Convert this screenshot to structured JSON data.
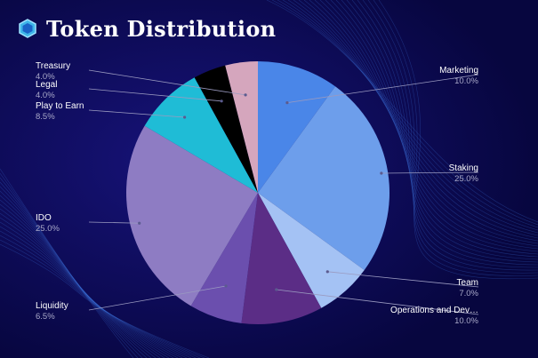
{
  "title": "Token Distribution",
  "colors": {
    "background": "#0b0a5a",
    "title": "#ffffff",
    "label": "#ffffff",
    "value_label": "#a9a9c9",
    "leader_line": "#9a9ac0"
  },
  "logo_icon": "hexagon-icon",
  "chart_data": {
    "type": "pie",
    "title": "Token Distribution",
    "start_angle_deg": 0,
    "direction": "clockwise",
    "slices": [
      {
        "label": "Marketing",
        "value": 10.0,
        "value_label": "10.0%",
        "color": "#4a86e8"
      },
      {
        "label": "Staking",
        "value": 25.0,
        "value_label": "25.0%",
        "color": "#6d9eeb"
      },
      {
        "label": "Team",
        "value": 7.0,
        "value_label": "7.0%",
        "color": "#a4c2f4"
      },
      {
        "label": "Operations and Dev…",
        "value": 10.0,
        "value_label": "10.0%",
        "color": "#5b2d86"
      },
      {
        "label": "Liquidity",
        "value": 6.5,
        "value_label": "6.5%",
        "color": "#6b4fae"
      },
      {
        "label": "IDO",
        "value": 25.0,
        "value_label": "25.0%",
        "color": "#8e7cc3"
      },
      {
        "label": "Play to Earn",
        "value": 8.5,
        "value_label": "8.5%",
        "color": "#1fbcd6"
      },
      {
        "label": "Legal",
        "value": 4.0,
        "value_label": "4.0%",
        "color": "#000000"
      },
      {
        "label": "Treasury",
        "value": 4.0,
        "value_label": "4.0%",
        "color": "#d5a6bd"
      }
    ]
  }
}
